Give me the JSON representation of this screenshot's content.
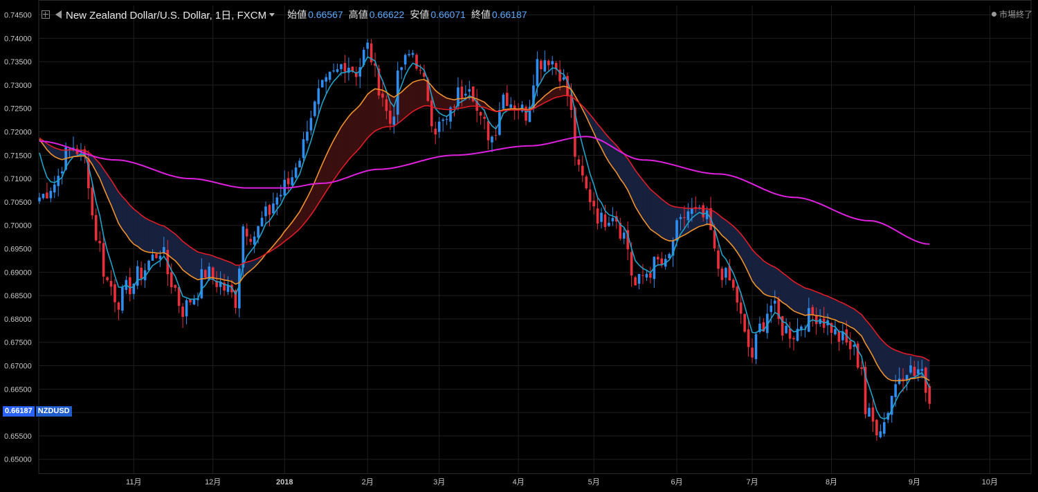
{
  "header": {
    "symbol_title": "New Zealand Dollar/U.S. Dollar, 1日, FXCM",
    "open_label": "始値",
    "open_value": "0.66567",
    "high_label": "高値",
    "high_value": "0.66622",
    "low_label": "安値",
    "low_value": "0.66071",
    "close_label": "終値",
    "close_value": "0.66187"
  },
  "market_status": "市場終了",
  "price_tag": {
    "price": "0.66187",
    "symbol": "NZDUSD"
  },
  "colors": {
    "background": "#000000",
    "grid": "#1f1f1f",
    "up_candle": "#2f8df0",
    "down_candle": "#e8303c",
    "ma_fast": "#1fa2c9",
    "ma_mid": "#f0922b",
    "ma_slow": "#e01c26",
    "ma_long": "#e020e0",
    "cloud_bear": "#17213d",
    "cloud_bull": "#3a0f0f"
  },
  "chart_data": {
    "type": "candlestick",
    "ylim": [
      0.647,
      0.747
    ],
    "y_ticks": [
      "0.74500",
      "0.74000",
      "0.73500",
      "0.73000",
      "0.72500",
      "0.72000",
      "0.71500",
      "0.71000",
      "0.70500",
      "0.70000",
      "0.69500",
      "0.69000",
      "0.68500",
      "0.68000",
      "0.67500",
      "0.67000",
      "0.66500",
      "0.66000",
      "0.65500",
      "0.65000"
    ],
    "x_ticks": [
      "11月",
      "12月",
      "2018",
      "2月",
      "3月",
      "4月",
      "5月",
      "6月",
      "7月",
      "8月",
      "9月",
      "10月"
    ],
    "x_tick_bar_index": [
      25,
      46,
      65,
      87,
      106,
      127,
      147,
      169,
      189,
      210,
      232,
      252
    ],
    "close_anchors": [
      [
        0,
        0.706
      ],
      [
        4,
        0.709
      ],
      [
        7,
        0.715
      ],
      [
        9,
        0.717
      ],
      [
        12,
        0.714
      ],
      [
        15,
        0.698
      ],
      [
        18,
        0.688
      ],
      [
        21,
        0.684
      ],
      [
        24,
        0.687
      ],
      [
        27,
        0.69
      ],
      [
        30,
        0.693
      ],
      [
        32,
        0.695
      ],
      [
        35,
        0.688
      ],
      [
        38,
        0.682
      ],
      [
        41,
        0.685
      ],
      [
        44,
        0.69
      ],
      [
        47,
        0.688
      ],
      [
        50,
        0.686
      ],
      [
        52,
        0.684
      ],
      [
        54,
        0.7
      ],
      [
        57,
        0.698
      ],
      [
        60,
        0.702
      ],
      [
        63,
        0.706
      ],
      [
        66,
        0.709
      ],
      [
        69,
        0.715
      ],
      [
        72,
        0.724
      ],
      [
        75,
        0.729
      ],
      [
        78,
        0.732
      ],
      [
        81,
        0.735
      ],
      [
        84,
        0.733
      ],
      [
        87,
        0.738
      ],
      [
        90,
        0.73
      ],
      [
        93,
        0.722
      ],
      [
        96,
        0.734
      ],
      [
        99,
        0.737
      ],
      [
        102,
        0.73
      ],
      [
        105,
        0.721
      ],
      [
        108,
        0.722
      ],
      [
        111,
        0.728
      ],
      [
        114,
        0.731
      ],
      [
        117,
        0.722
      ],
      [
        120,
        0.719
      ],
      [
        123,
        0.728
      ],
      [
        126,
        0.726
      ],
      [
        129,
        0.724
      ],
      [
        132,
        0.735
      ],
      [
        135,
        0.736
      ],
      [
        138,
        0.733
      ],
      [
        140,
        0.728
      ],
      [
        143,
        0.711
      ],
      [
        146,
        0.706
      ],
      [
        149,
        0.701
      ],
      [
        152,
        0.703
      ],
      [
        155,
        0.698
      ],
      [
        158,
        0.687
      ],
      [
        161,
        0.69
      ],
      [
        164,
        0.692
      ],
      [
        166,
        0.691
      ],
      [
        169,
        0.699
      ],
      [
        172,
        0.703
      ],
      [
        175,
        0.702
      ],
      [
        177,
        0.701
      ],
      [
        180,
        0.691
      ],
      [
        183,
        0.688
      ],
      [
        185,
        0.684
      ],
      [
        187,
        0.676
      ],
      [
        189,
        0.672
      ],
      [
        191,
        0.678
      ],
      [
        194,
        0.683
      ],
      [
        197,
        0.678
      ],
      [
        200,
        0.677
      ],
      [
        203,
        0.68
      ],
      [
        206,
        0.681
      ],
      [
        209,
        0.679
      ],
      [
        212,
        0.676
      ],
      [
        215,
        0.674
      ],
      [
        218,
        0.67
      ],
      [
        219,
        0.66
      ],
      [
        222,
        0.657
      ],
      [
        224,
        0.658
      ],
      [
        226,
        0.664
      ],
      [
        228,
        0.668
      ],
      [
        230,
        0.67
      ],
      [
        232,
        0.668
      ],
      [
        233,
        0.669
      ],
      [
        235,
        0.666
      ],
      [
        236,
        0.6619
      ]
    ],
    "moving_averages": [
      {
        "period": 5,
        "color": "#1fa2c9"
      },
      {
        "period": 20,
        "color": "#f0922b"
      },
      {
        "period": 40,
        "color": "#e01c26"
      },
      {
        "period": 200,
        "color": "#e020e0"
      }
    ],
    "long_ma_anchors": [
      [
        0,
        0.718
      ],
      [
        20,
        0.714
      ],
      [
        40,
        0.71
      ],
      [
        55,
        0.708
      ],
      [
        65,
        0.708
      ],
      [
        75,
        0.709
      ],
      [
        90,
        0.712
      ],
      [
        110,
        0.715
      ],
      [
        130,
        0.717
      ],
      [
        145,
        0.719
      ],
      [
        160,
        0.714
      ],
      [
        180,
        0.711
      ],
      [
        200,
        0.706
      ],
      [
        220,
        0.701
      ],
      [
        236,
        0.696
      ]
    ],
    "last_bar": {
      "open": 0.66567,
      "high": 0.66622,
      "low": 0.66071,
      "close": 0.66187
    }
  }
}
